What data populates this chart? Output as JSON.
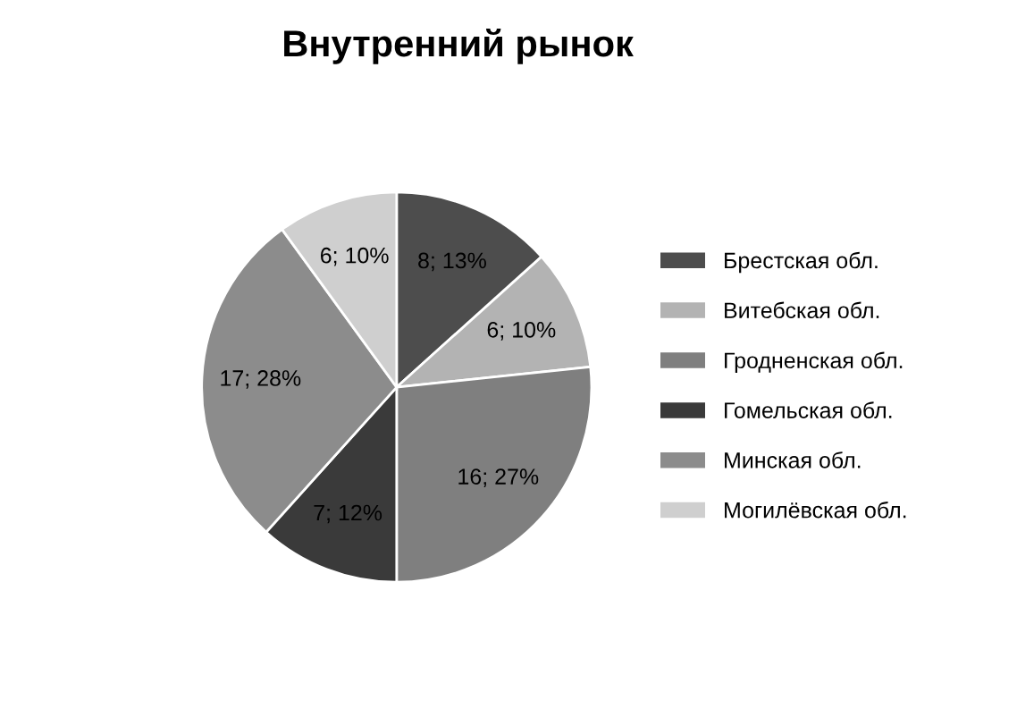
{
  "chart_data": {
    "type": "pie",
    "title": "Внутренний рынок",
    "categories": [
      "Брестская обл.",
      "Витебская обл.",
      "Гродненская обл.",
      "Гомельская обл.",
      "Минская обл.",
      "Могилёвская обл."
    ],
    "values": [
      8,
      6,
      16,
      7,
      17,
      6
    ],
    "colors": [
      "#4d4d4d",
      "#b3b3b3",
      "#7f7f7f",
      "#3a3a3a",
      "#8c8c8c",
      "#cfcfcf"
    ],
    "value_labels": [
      "8; 13%",
      "6; 10%",
      "16; 27%",
      "7; 12%",
      "17; 28%",
      "6; 10%"
    ],
    "legend": "right"
  }
}
